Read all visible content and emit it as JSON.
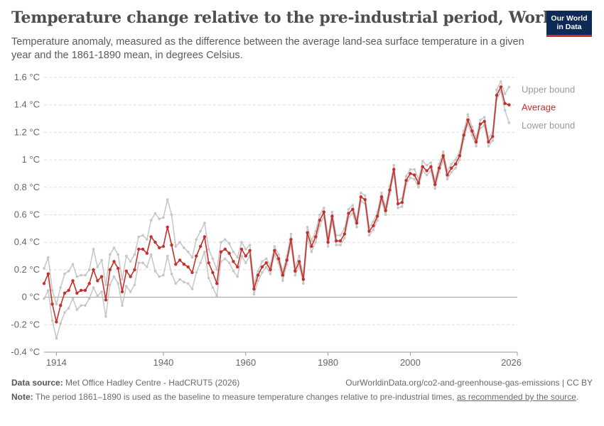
{
  "header": {
    "title": "Temperature change relative to the pre-industrial period, World",
    "subtitle": "Temperature anomaly, measured as the difference between the average land-sea surface temperature in a given year and the 1861-1890 mean, in degrees Celsius.",
    "logo_line1": "Our World",
    "logo_line2": "in Data"
  },
  "footer": {
    "data_source_label": "Data source:",
    "data_source": "Met Office Hadley Centre - HadCRUT5 (2026)",
    "url": "OurWorldinData.org/co2-and-greenhouse-gas-emissions | CC BY",
    "note_label": "Note:",
    "note_text": "The period 1861–1890 is used as the baseline to measure temperature changes relative to pre-industrial times,",
    "note_link": "as recommended by the source",
    "note_end": "."
  },
  "colors": {
    "average": "#c4302b",
    "bounds": "#c6c6c6",
    "grid": "#dddddd",
    "zero_line": "#999999",
    "label_bounds": "#9a9a9a"
  },
  "chart_data": {
    "type": "line",
    "x_start": 1911,
    "x_ticks": [
      1914,
      1940,
      1960,
      1980,
      2000,
      2026
    ],
    "y_ticks": [
      -0.4,
      -0.2,
      0,
      0.2,
      0.4,
      0.6,
      0.8,
      1,
      1.2,
      1.4,
      1.6
    ],
    "y_tick_labels": [
      "-0.4 °C",
      "-0.2 °C",
      "0 °C",
      "0.2 °C",
      "0.4 °C",
      "0.6 °C",
      "0.8 °C",
      "1 °C",
      "1.2 °C",
      "1.4 °C",
      "1.6 °C"
    ],
    "xlim": [
      1911,
      2026
    ],
    "ylim": [
      -0.4,
      1.6
    ],
    "grid": true,
    "series": [
      {
        "name": "Average",
        "values": [
          0.1,
          0.17,
          -0.05,
          -0.18,
          -0.06,
          0.03,
          0.05,
          0.12,
          0.03,
          0.05,
          0.05,
          0.1,
          0.2,
          0.12,
          0.15,
          -0.02,
          0.2,
          0.26,
          0.21,
          0.04,
          0.19,
          0.15,
          0.2,
          0.35,
          0.35,
          0.32,
          0.44,
          0.4,
          0.36,
          0.37,
          0.51,
          0.38,
          0.24,
          0.27,
          0.24,
          0.22,
          0.18,
          0.3,
          0.37,
          0.44,
          0.25,
          0.18,
          0.1,
          0.33,
          0.35,
          0.32,
          0.26,
          0.22,
          0.35,
          0.3,
          0.34,
          0.06,
          0.16,
          0.22,
          0.25,
          0.2,
          0.34,
          0.28,
          0.16,
          0.27,
          0.42,
          0.19,
          0.26,
          0.13,
          0.47,
          0.37,
          0.44,
          0.56,
          0.62,
          0.4,
          0.59,
          0.41,
          0.41,
          0.46,
          0.61,
          0.64,
          0.54,
          0.73,
          0.71,
          0.48,
          0.52,
          0.59,
          0.73,
          0.63,
          0.78,
          0.93,
          0.68,
          0.69,
          0.85,
          0.9,
          0.89,
          0.83,
          0.95,
          0.92,
          0.95,
          0.82,
          0.94,
          1.03,
          0.89,
          0.94,
          0.97,
          1.03,
          1.18,
          1.29,
          1.21,
          1.13,
          1.26,
          1.28,
          1.13,
          1.17,
          1.47,
          1.53,
          1.41,
          1.4
        ]
      },
      {
        "name": "Upper bound",
        "values": [
          0.21,
          0.29,
          0.05,
          -0.05,
          0.07,
          0.17,
          0.19,
          0.24,
          0.15,
          0.16,
          0.16,
          0.2,
          0.35,
          0.22,
          0.27,
          0.09,
          0.31,
          0.36,
          0.31,
          0.13,
          0.3,
          0.26,
          0.31,
          0.44,
          0.45,
          0.42,
          0.56,
          0.61,
          0.57,
          0.58,
          0.71,
          0.6,
          0.37,
          0.4,
          0.36,
          0.33,
          0.29,
          0.42,
          0.48,
          0.54,
          0.35,
          0.28,
          0.2,
          0.4,
          0.42,
          0.39,
          0.33,
          0.29,
          0.4,
          0.35,
          0.38,
          0.1,
          0.19,
          0.26,
          0.28,
          0.23,
          0.37,
          0.31,
          0.19,
          0.3,
          0.46,
          0.22,
          0.3,
          0.16,
          0.51,
          0.41,
          0.48,
          0.6,
          0.65,
          0.44,
          0.62,
          0.45,
          0.45,
          0.5,
          0.64,
          0.67,
          0.57,
          0.76,
          0.74,
          0.51,
          0.55,
          0.62,
          0.76,
          0.66,
          0.81,
          0.96,
          0.71,
          0.72,
          0.88,
          0.93,
          0.93,
          0.86,
          0.99,
          0.96,
          0.98,
          0.85,
          0.97,
          1.06,
          0.92,
          0.97,
          1.0,
          1.06,
          1.21,
          1.33,
          1.24,
          1.16,
          1.29,
          1.31,
          1.16,
          1.2,
          1.51,
          1.57,
          1.48,
          1.53
        ]
      },
      {
        "name": "Lower bound",
        "values": [
          -0.01,
          0.05,
          -0.17,
          -0.3,
          -0.19,
          -0.11,
          -0.08,
          -0.01,
          -0.09,
          -0.06,
          -0.06,
          -0.01,
          0.07,
          0.01,
          0.04,
          -0.14,
          0.09,
          0.15,
          0.1,
          -0.06,
          0.08,
          0.04,
          0.09,
          0.25,
          0.25,
          0.22,
          0.31,
          0.19,
          0.15,
          0.16,
          0.3,
          0.17,
          0.1,
          0.13,
          0.11,
          0.1,
          0.06,
          0.18,
          0.25,
          0.33,
          0.14,
          0.07,
          0.01,
          0.26,
          0.28,
          0.25,
          0.19,
          0.15,
          0.3,
          0.25,
          0.3,
          0.02,
          0.12,
          0.18,
          0.22,
          0.17,
          0.31,
          0.25,
          0.12,
          0.24,
          0.39,
          0.16,
          0.23,
          0.1,
          0.43,
          0.33,
          0.4,
          0.52,
          0.59,
          0.37,
          0.55,
          0.38,
          0.38,
          0.43,
          0.58,
          0.61,
          0.51,
          0.7,
          0.68,
          0.45,
          0.49,
          0.56,
          0.7,
          0.6,
          0.75,
          0.9,
          0.65,
          0.66,
          0.82,
          0.87,
          0.86,
          0.8,
          0.92,
          0.89,
          0.92,
          0.79,
          0.91,
          1.0,
          0.86,
          0.91,
          0.94,
          1.0,
          1.15,
          1.26,
          1.18,
          1.1,
          1.23,
          1.25,
          1.1,
          1.14,
          1.44,
          1.5,
          1.36,
          1.27
        ]
      }
    ]
  }
}
